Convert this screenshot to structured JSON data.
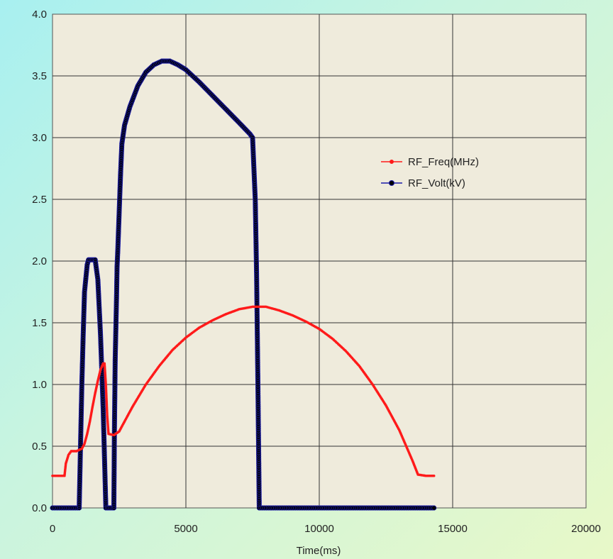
{
  "chart_data": {
    "type": "scatter",
    "xlabel": "Time(ms)",
    "ylabel": "",
    "title": "",
    "xlim": [
      0,
      20000
    ],
    "ylim": [
      0,
      4.0
    ],
    "xticks": [
      "0",
      "5000",
      "10000",
      "15000",
      "20000"
    ],
    "yticks": [
      "0.0",
      "0.5",
      "1.0",
      "1.5",
      "2.0",
      "2.5",
      "3.0",
      "3.5",
      "4.0"
    ],
    "grid": true,
    "legend_placement": "right-middle",
    "plot_background": "#efebdc",
    "series": [
      {
        "name": "RF_Freq(MHz)",
        "color": "#ff1a1a",
        "marker": "small-dot",
        "points": [
          [
            0,
            0.26
          ],
          [
            450,
            0.26
          ],
          [
            500,
            0.36
          ],
          [
            600,
            0.43
          ],
          [
            700,
            0.46
          ],
          [
            900,
            0.46
          ],
          [
            1000,
            0.47
          ],
          [
            1100,
            0.48
          ],
          [
            1200,
            0.52
          ],
          [
            1300,
            0.6
          ],
          [
            1400,
            0.7
          ],
          [
            1500,
            0.82
          ],
          [
            1600,
            0.93
          ],
          [
            1700,
            1.03
          ],
          [
            1800,
            1.12
          ],
          [
            1900,
            1.17
          ],
          [
            1950,
            1.17
          ],
          [
            2000,
            1.0
          ],
          [
            2050,
            0.75
          ],
          [
            2100,
            0.6
          ],
          [
            2300,
            0.59
          ],
          [
            2500,
            0.62
          ],
          [
            2700,
            0.7
          ],
          [
            3000,
            0.82
          ],
          [
            3500,
            1.0
          ],
          [
            4000,
            1.15
          ],
          [
            4500,
            1.28
          ],
          [
            5000,
            1.38
          ],
          [
            5500,
            1.46
          ],
          [
            6000,
            1.52
          ],
          [
            6500,
            1.57
          ],
          [
            7000,
            1.61
          ],
          [
            7500,
            1.63
          ],
          [
            7700,
            1.63
          ],
          [
            8000,
            1.63
          ],
          [
            8500,
            1.6
          ],
          [
            9000,
            1.56
          ],
          [
            9500,
            1.51
          ],
          [
            10000,
            1.45
          ],
          [
            10500,
            1.37
          ],
          [
            11000,
            1.27
          ],
          [
            11500,
            1.15
          ],
          [
            12000,
            1.0
          ],
          [
            12500,
            0.83
          ],
          [
            13000,
            0.63
          ],
          [
            13500,
            0.38
          ],
          [
            13700,
            0.27
          ],
          [
            14000,
            0.26
          ],
          [
            14300,
            0.26
          ]
        ]
      },
      {
        "name": "RF_Volt(kV)",
        "color": "#1a1aa8",
        "marker": "filled-circle",
        "points": [
          [
            0,
            0.0
          ],
          [
            1000,
            0.0
          ],
          [
            1050,
            0.5
          ],
          [
            1100,
            1.0
          ],
          [
            1150,
            1.4
          ],
          [
            1200,
            1.75
          ],
          [
            1300,
            1.97
          ],
          [
            1350,
            2.01
          ],
          [
            1450,
            2.01
          ],
          [
            1600,
            2.01
          ],
          [
            1700,
            1.85
          ],
          [
            1800,
            1.4
          ],
          [
            1900,
            0.8
          ],
          [
            2000,
            0.0
          ],
          [
            2300,
            0.0
          ],
          [
            2320,
            0.6
          ],
          [
            2350,
            1.2
          ],
          [
            2400,
            1.7
          ],
          [
            2420,
            1.95
          ],
          [
            2450,
            2.1
          ],
          [
            2500,
            2.4
          ],
          [
            2550,
            2.7
          ],
          [
            2600,
            2.95
          ],
          [
            2700,
            3.1
          ],
          [
            2900,
            3.25
          ],
          [
            3200,
            3.42
          ],
          [
            3500,
            3.53
          ],
          [
            3800,
            3.59
          ],
          [
            4100,
            3.62
          ],
          [
            4400,
            3.62
          ],
          [
            4700,
            3.59
          ],
          [
            5000,
            3.55
          ],
          [
            5500,
            3.45
          ],
          [
            6000,
            3.34
          ],
          [
            6500,
            3.23
          ],
          [
            7000,
            3.12
          ],
          [
            7400,
            3.03
          ],
          [
            7500,
            3.0
          ],
          [
            7600,
            2.5
          ],
          [
            7650,
            1.9
          ],
          [
            7700,
            1.0
          ],
          [
            7750,
            0.0
          ],
          [
            10000,
            0.0
          ],
          [
            14300,
            0.0
          ]
        ]
      }
    ]
  }
}
